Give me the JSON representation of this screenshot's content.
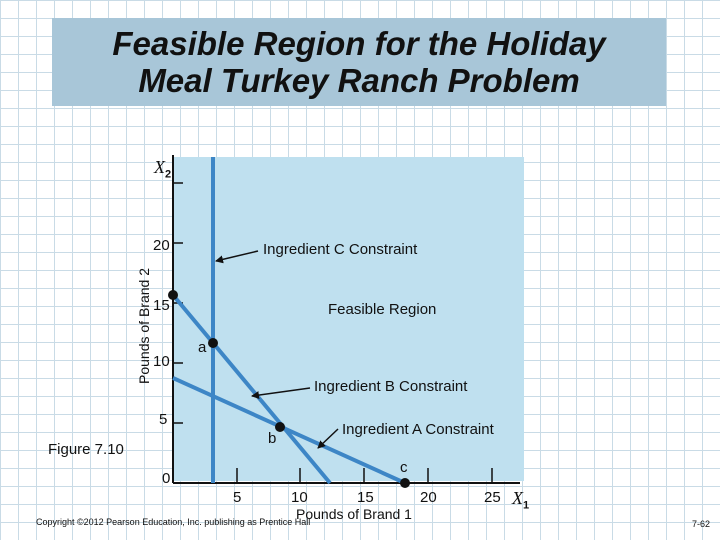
{
  "title": {
    "line1": "Feasible Region for the Holiday",
    "line2": "Meal Turkey Ranch Problem"
  },
  "axes": {
    "y_var": "X",
    "y_sub": "2",
    "x_var": "X",
    "x_sub": "1",
    "ylabel": "Pounds of Brand 2",
    "xlabel": "Pounds of Brand 1",
    "y_ticks": [
      "20",
      "15",
      "10",
      "5",
      "0"
    ],
    "x_ticks": [
      "5",
      "10",
      "15",
      "20",
      "25"
    ]
  },
  "labels": {
    "ingredient_c": "Ingredient C Constraint",
    "feasible_region": "Feasible Region",
    "ingredient_b": "Ingredient B Constraint",
    "ingredient_a": "Ingredient A Constraint"
  },
  "points": {
    "a": "a",
    "b": "b",
    "c": "c"
  },
  "figure_label": "Figure 7.10",
  "copyright": "Copyright ©2012 Pearson Education, Inc. publishing as Prentice Hall",
  "page_number": "7-62",
  "colors": {
    "constraint_line": "#3d86c6",
    "feasible_fill": "#bfe0ef",
    "title_fill": "#a8c6d8"
  }
}
